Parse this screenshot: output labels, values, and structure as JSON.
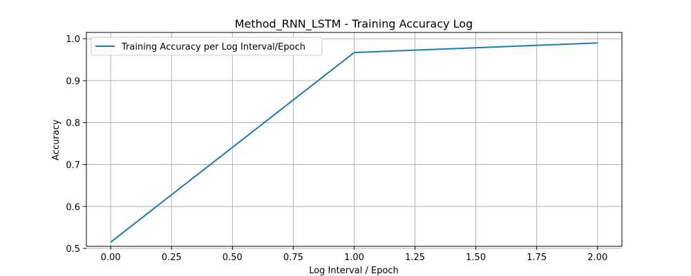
{
  "chart_data": {
    "type": "line",
    "title": "Method_RNN_LSTM - Training Accuracy Log",
    "xlabel": "Log Interval / Epoch",
    "ylabel": "Accuracy",
    "xlim": [
      -0.1,
      2.1
    ],
    "ylim": [
      0.505,
      1.015
    ],
    "x_ticks": [
      0.0,
      0.25,
      0.5,
      0.75,
      1.0,
      1.25,
      1.5,
      1.75,
      2.0
    ],
    "x_tick_labels": [
      "0.00",
      "0.25",
      "0.50",
      "0.75",
      "1.00",
      "1.25",
      "1.50",
      "1.75",
      "2.00"
    ],
    "y_ticks": [
      0.5,
      0.6,
      0.7,
      0.8,
      0.9,
      1.0
    ],
    "y_tick_labels": [
      "0.5",
      "0.6",
      "0.7",
      "0.8",
      "0.9",
      "1.0"
    ],
    "grid": true,
    "legend_position": "upper-left",
    "series": [
      {
        "name": "Training Accuracy per Log Interval/Epoch",
        "color": "#1f77b4",
        "x": [
          0,
          1,
          2
        ],
        "y": [
          0.515,
          0.967,
          0.99
        ]
      }
    ]
  }
}
